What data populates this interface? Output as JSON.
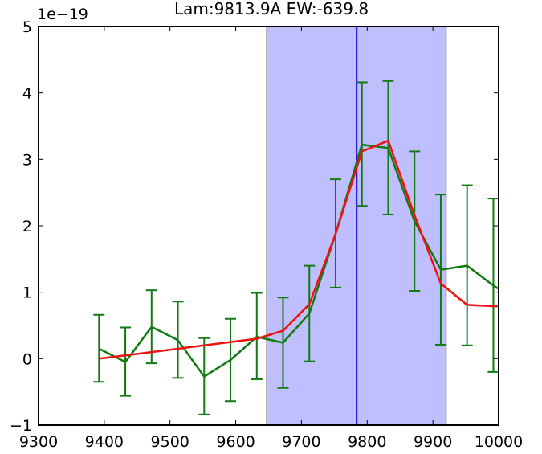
{
  "chart_data": {
    "type": "line",
    "title": "Lam:9813.9A EW:-639.8",
    "xlabel": "",
    "ylabel": "",
    "y_offset_label": "1e−19",
    "xlim": [
      9300,
      10000
    ],
    "ylim": [
      -1,
      5
    ],
    "x_ticks": [
      9300,
      9400,
      9500,
      9600,
      9700,
      9800,
      9900,
      10000
    ],
    "x_tick_labels": [
      "9300",
      "9400",
      "9500",
      "9600",
      "9700",
      "9800",
      "9900",
      "10000"
    ],
    "y_ticks": [
      -1,
      0,
      1,
      2,
      3,
      4,
      5
    ],
    "y_tick_labels": [
      "−1",
      "0",
      "1",
      "2",
      "3",
      "4",
      "5"
    ],
    "grid": false,
    "shaded_region": {
      "x_start": 9647,
      "x_end": 9920,
      "color": "#bfbfff",
      "edge_color": "#b3b3b3"
    },
    "vertical_line": {
      "x": 9784,
      "color": "#0000cc"
    },
    "series": [
      {
        "color": "#117a11",
        "x": [
          9392,
          9432,
          9472,
          9512,
          9552,
          9592,
          9632,
          9672,
          9712,
          9752,
          9792,
          9832,
          9872,
          9912,
          9952,
          9992,
          10000
        ],
        "y": [
          0.15,
          -0.05,
          0.48,
          0.28,
          -0.27,
          -0.02,
          0.33,
          0.24,
          0.68,
          1.88,
          3.22,
          3.17,
          2.07,
          1.34,
          1.4,
          1.1,
          1.05
        ],
        "err_low": [
          0.5,
          0.51,
          0.55,
          0.57,
          0.57,
          0.62,
          0.64,
          0.68,
          0.72,
          0.81,
          0.92,
          1.0,
          1.05,
          1.13,
          1.2,
          1.3,
          null
        ],
        "err_high": [
          0.51,
          0.52,
          0.55,
          0.58,
          0.58,
          0.62,
          0.66,
          0.68,
          0.72,
          0.82,
          0.94,
          1.01,
          1.05,
          1.13,
          1.21,
          1.31,
          null
        ]
      },
      {
        "color": "#ee1111",
        "x": [
          9392,
          9472,
          9552,
          9632,
          9672,
          9712,
          9752,
          9792,
          9832,
          9872,
          9912,
          9952,
          9992,
          10000
        ],
        "y": [
          0.0,
          0.1,
          0.2,
          0.3,
          0.42,
          0.82,
          1.88,
          3.12,
          3.28,
          2.16,
          1.13,
          0.81,
          0.79,
          0.79
        ]
      }
    ]
  }
}
